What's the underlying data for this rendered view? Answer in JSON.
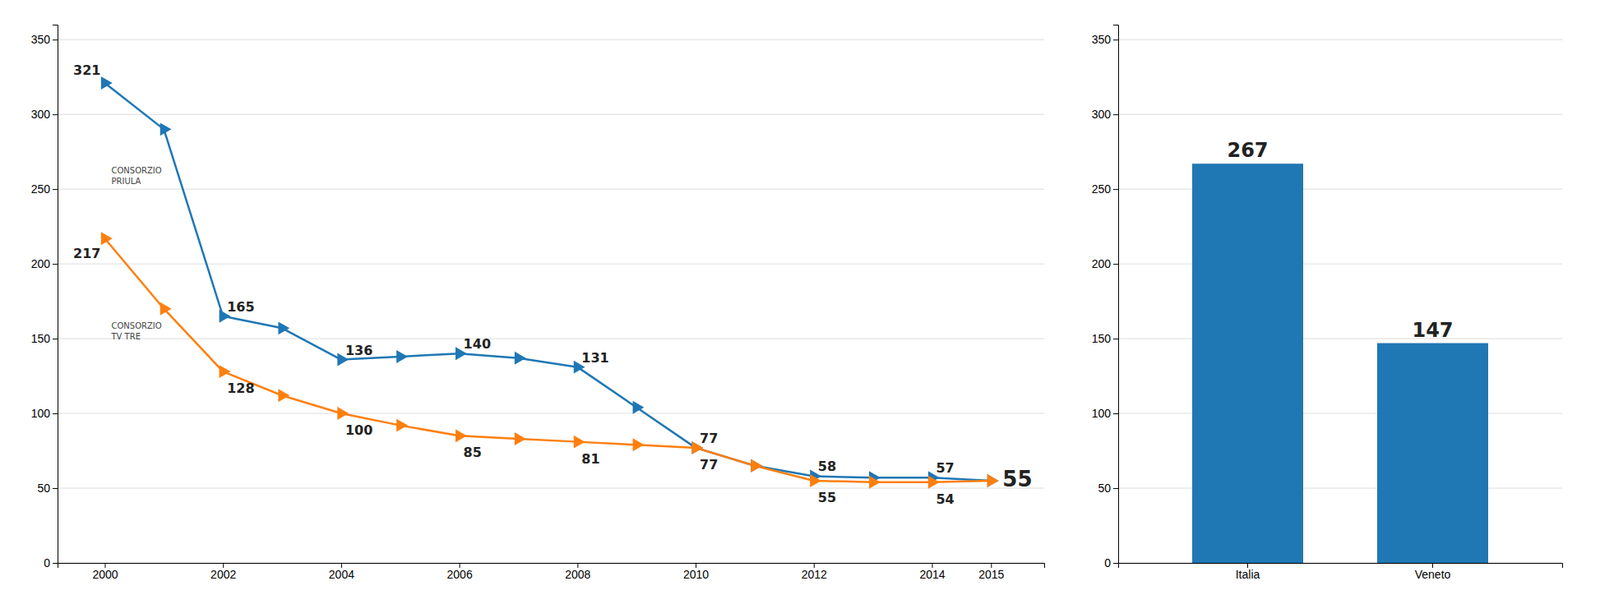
{
  "chart_data": [
    {
      "type": "line",
      "x": [
        2000,
        2001,
        2002,
        2003,
        2004,
        2005,
        2006,
        2007,
        2008,
        2009,
        2010,
        2011,
        2012,
        2013,
        2014,
        2015
      ],
      "xlim": [
        1999.2,
        2015.9
      ],
      "xticks": [
        2000,
        2002,
        2004,
        2006,
        2008,
        2010,
        2012,
        2014,
        2015
      ],
      "ylim": [
        0,
        360
      ],
      "yticks": [
        0,
        50,
        100,
        150,
        200,
        250,
        300,
        350
      ],
      "grid": true,
      "marker": "triangle-right",
      "series": [
        {
          "values": [
            321,
            290,
            165,
            157,
            136,
            138,
            140,
            137,
            131,
            104,
            77,
            65,
            58,
            57,
            57,
            55
          ],
          "annotations": [
            {
              "x": 2000,
              "value": 321
            },
            {
              "x": 2002,
              "value": 165
            },
            {
              "x": 2004,
              "value": 136
            },
            {
              "x": 2006,
              "value": 140
            },
            {
              "x": 2008,
              "value": 131
            },
            {
              "x": 2010,
              "value": 77
            },
            {
              "x": 2012,
              "value": 58
            },
            {
              "x": 2014,
              "value": 57
            },
            {
              "x": 2015,
              "value": 55
            }
          ]
        },
        {
          "values": [
            217,
            170,
            128,
            112,
            100,
            92,
            85,
            83,
            81,
            79,
            77,
            65,
            55,
            54,
            54,
            55
          ],
          "annotations": [
            {
              "x": 2000,
              "value": 217
            },
            {
              "x": 2002,
              "value": 128
            },
            {
              "x": 2004,
              "value": 100
            },
            {
              "x": 2006,
              "value": 85
            },
            {
              "x": 2008,
              "value": 81
            },
            {
              "x": 2010,
              "value": 77
            },
            {
              "x": 2012,
              "value": 55
            },
            {
              "x": 2014,
              "value": 54
            }
          ]
        }
      ],
      "annotations": [
        {
          "text": "CONSORZIO\nPRIULA",
          "x": 2000,
          "y": 321
        },
        {
          "text": "CONSORZIO\nTV TRE",
          "x": 2000,
          "y": 217
        }
      ]
    },
    {
      "type": "bar",
      "categories": [
        "Italia",
        "Veneto"
      ],
      "values": [
        267,
        147
      ],
      "ylim": [
        0,
        360
      ],
      "yticks": [
        0,
        50,
        100,
        150,
        200,
        250,
        300,
        350
      ],
      "grid": true,
      "data_labels": true
    }
  ]
}
